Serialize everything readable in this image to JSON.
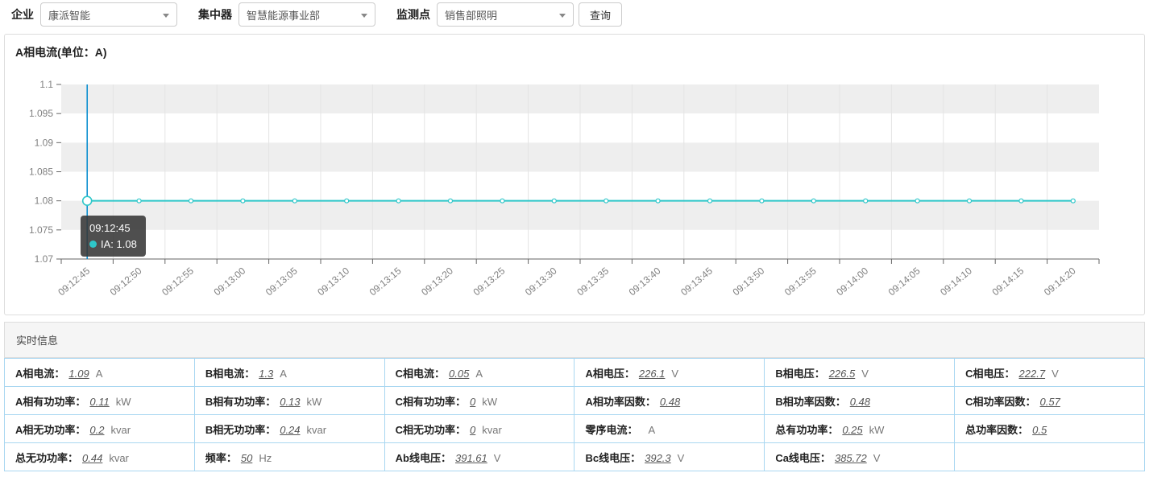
{
  "toolbar": {
    "fields": [
      {
        "label": "企业",
        "value": "康派智能"
      },
      {
        "label": "集中器",
        "value": "智慧能源事业部"
      },
      {
        "label": "监测点",
        "value": "销售部照明"
      }
    ],
    "query_button": "查询"
  },
  "chart_data": {
    "type": "line",
    "title": "A相电流(单位：A)",
    "categories": [
      "09:12:45",
      "09:12:50",
      "09:12:55",
      "09:13:00",
      "09:13:05",
      "09:13:10",
      "09:13:15",
      "09:13:20",
      "09:13:25",
      "09:13:30",
      "09:13:35",
      "09:13:40",
      "09:13:45",
      "09:13:50",
      "09:13:55",
      "09:14:00",
      "09:14:05",
      "09:14:10",
      "09:14:15",
      "09:14:20"
    ],
    "series": [
      {
        "name": "IA",
        "values": [
          1.08,
          1.08,
          1.08,
          1.08,
          1.08,
          1.08,
          1.08,
          1.08,
          1.08,
          1.08,
          1.08,
          1.08,
          1.08,
          1.08,
          1.08,
          1.08,
          1.08,
          1.08,
          1.08,
          1.08
        ]
      }
    ],
    "ylim": [
      1.07,
      1.1
    ],
    "yticks": [
      "1.1",
      "1.095",
      "1.09",
      "1.085",
      "1.08",
      "1.075",
      "1.07"
    ],
    "xlabel": "",
    "ylabel": "",
    "legend_position": "none",
    "grid": {
      "split_area": true,
      "vertical_lines": true
    },
    "colors": {
      "line": "#2ec7c9",
      "crosshair": "#008acd",
      "stripe": "#eeeeee",
      "split_line": "#e4e4e4",
      "axis": "#666666",
      "tick_label": "#808080"
    },
    "tooltip": {
      "time": "09:12:45",
      "text": "IA: 1.08",
      "dot_color": "#2ec7c9",
      "point_index": 0
    }
  },
  "realtime": {
    "header": "实时信息",
    "rows": [
      [
        {
          "label": "A相电流：",
          "value": "1.09",
          "unit": "A"
        },
        {
          "label": "B相电流：",
          "value": "1.3",
          "unit": "A"
        },
        {
          "label": "C相电流：",
          "value": "0.05",
          "unit": "A"
        },
        {
          "label": "A相电压：",
          "value": "226.1",
          "unit": "V"
        },
        {
          "label": "B相电压：",
          "value": "226.5",
          "unit": "V"
        },
        {
          "label": "C相电压：",
          "value": "222.7",
          "unit": "V"
        }
      ],
      [
        {
          "label": "A相有功功率：",
          "value": "0.11",
          "unit": "kW"
        },
        {
          "label": "B相有功功率：",
          "value": "0.13",
          "unit": "kW"
        },
        {
          "label": "C相有功功率：",
          "value": "0",
          "unit": "kW"
        },
        {
          "label": "A相功率因数：",
          "value": "0.48",
          "unit": ""
        },
        {
          "label": "B相功率因数：",
          "value": "0.48",
          "unit": ""
        },
        {
          "label": "C相功率因数：",
          "value": "0.57",
          "unit": ""
        }
      ],
      [
        {
          "label": "A相无功功率：",
          "value": "0.2",
          "unit": "kvar"
        },
        {
          "label": "B相无功功率：",
          "value": "0.24",
          "unit": "kvar"
        },
        {
          "label": "C相无功功率：",
          "value": "0",
          "unit": "kvar"
        },
        {
          "label": "零序电流：",
          "value": "",
          "unit": "A"
        },
        {
          "label": "总有功功率：",
          "value": "0.25",
          "unit": "kW"
        },
        {
          "label": "总功率因数：",
          "value": "0.5",
          "unit": ""
        }
      ],
      [
        {
          "label": "总无功功率：",
          "value": "0.44",
          "unit": "kvar"
        },
        {
          "label": "频率：",
          "value": "50",
          "unit": "Hz"
        },
        {
          "label": "Ab线电压：",
          "value": "391.61",
          "unit": "V"
        },
        {
          "label": "Bc线电压：",
          "value": "392.3",
          "unit": "V"
        },
        {
          "label": "Ca线电压：",
          "value": "385.72",
          "unit": "V"
        },
        null
      ]
    ]
  }
}
